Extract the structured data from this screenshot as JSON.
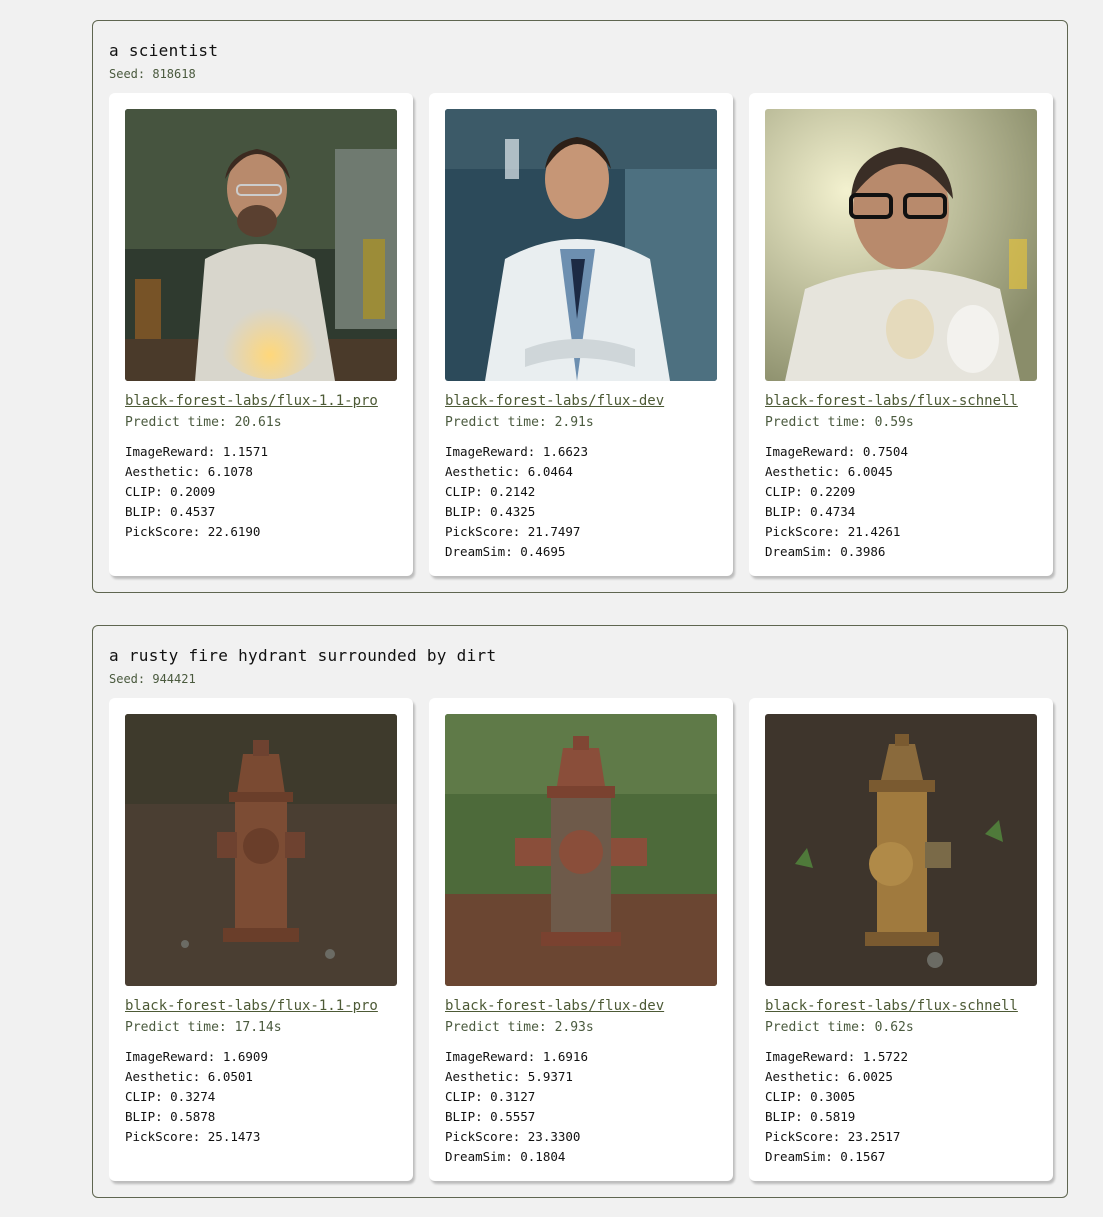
{
  "groups": [
    {
      "prompt": "a scientist",
      "seed": "Seed: 818618",
      "cards": [
        {
          "model": "black-forest-labs/flux-1.1-pro",
          "predict_time": "Predict time: 20.61s",
          "metrics": [
            "ImageReward: 1.1571",
            "Aesthetic: 6.1078",
            "CLIP: 0.2009",
            "BLIP: 0.4537",
            "PickScore: 22.6190"
          ]
        },
        {
          "model": "black-forest-labs/flux-dev",
          "predict_time": "Predict time: 2.91s",
          "metrics": [
            "ImageReward: 1.6623",
            "Aesthetic: 6.0464",
            "CLIP: 0.2142",
            "BLIP: 0.4325",
            "PickScore: 21.7497",
            "DreamSim: 0.4695"
          ]
        },
        {
          "model": "black-forest-labs/flux-schnell",
          "predict_time": "Predict time: 0.59s",
          "metrics": [
            "ImageReward: 0.7504",
            "Aesthetic: 6.0045",
            "CLIP: 0.2209",
            "BLIP: 0.4734",
            "PickScore: 21.4261",
            "DreamSim: 0.3986"
          ]
        }
      ]
    },
    {
      "prompt": "a rusty fire hydrant surrounded by dirt",
      "seed": "Seed: 944421",
      "cards": [
        {
          "model": "black-forest-labs/flux-1.1-pro",
          "predict_time": "Predict time: 17.14s",
          "metrics": [
            "ImageReward: 1.6909",
            "Aesthetic: 6.0501",
            "CLIP: 0.3274",
            "BLIP: 0.5878",
            "PickScore: 25.1473"
          ]
        },
        {
          "model": "black-forest-labs/flux-dev",
          "predict_time": "Predict time: 2.93s",
          "metrics": [
            "ImageReward: 1.6916",
            "Aesthetic: 5.9371",
            "CLIP: 0.3127",
            "BLIP: 0.5557",
            "PickScore: 23.3300",
            "DreamSim: 0.1804"
          ]
        },
        {
          "model": "black-forest-labs/flux-schnell",
          "predict_time": "Predict time: 0.62s",
          "metrics": [
            "ImageReward: 1.5722",
            "Aesthetic: 6.0025",
            "CLIP: 0.3005",
            "BLIP: 0.5819",
            "PickScore: 23.2517",
            "DreamSim: 0.1567"
          ]
        }
      ]
    }
  ],
  "colors": {
    "page_bg": "#f1f1f1",
    "border": "#5f6650",
    "link": "#4d5a36",
    "muted": "#4a5a3e"
  }
}
